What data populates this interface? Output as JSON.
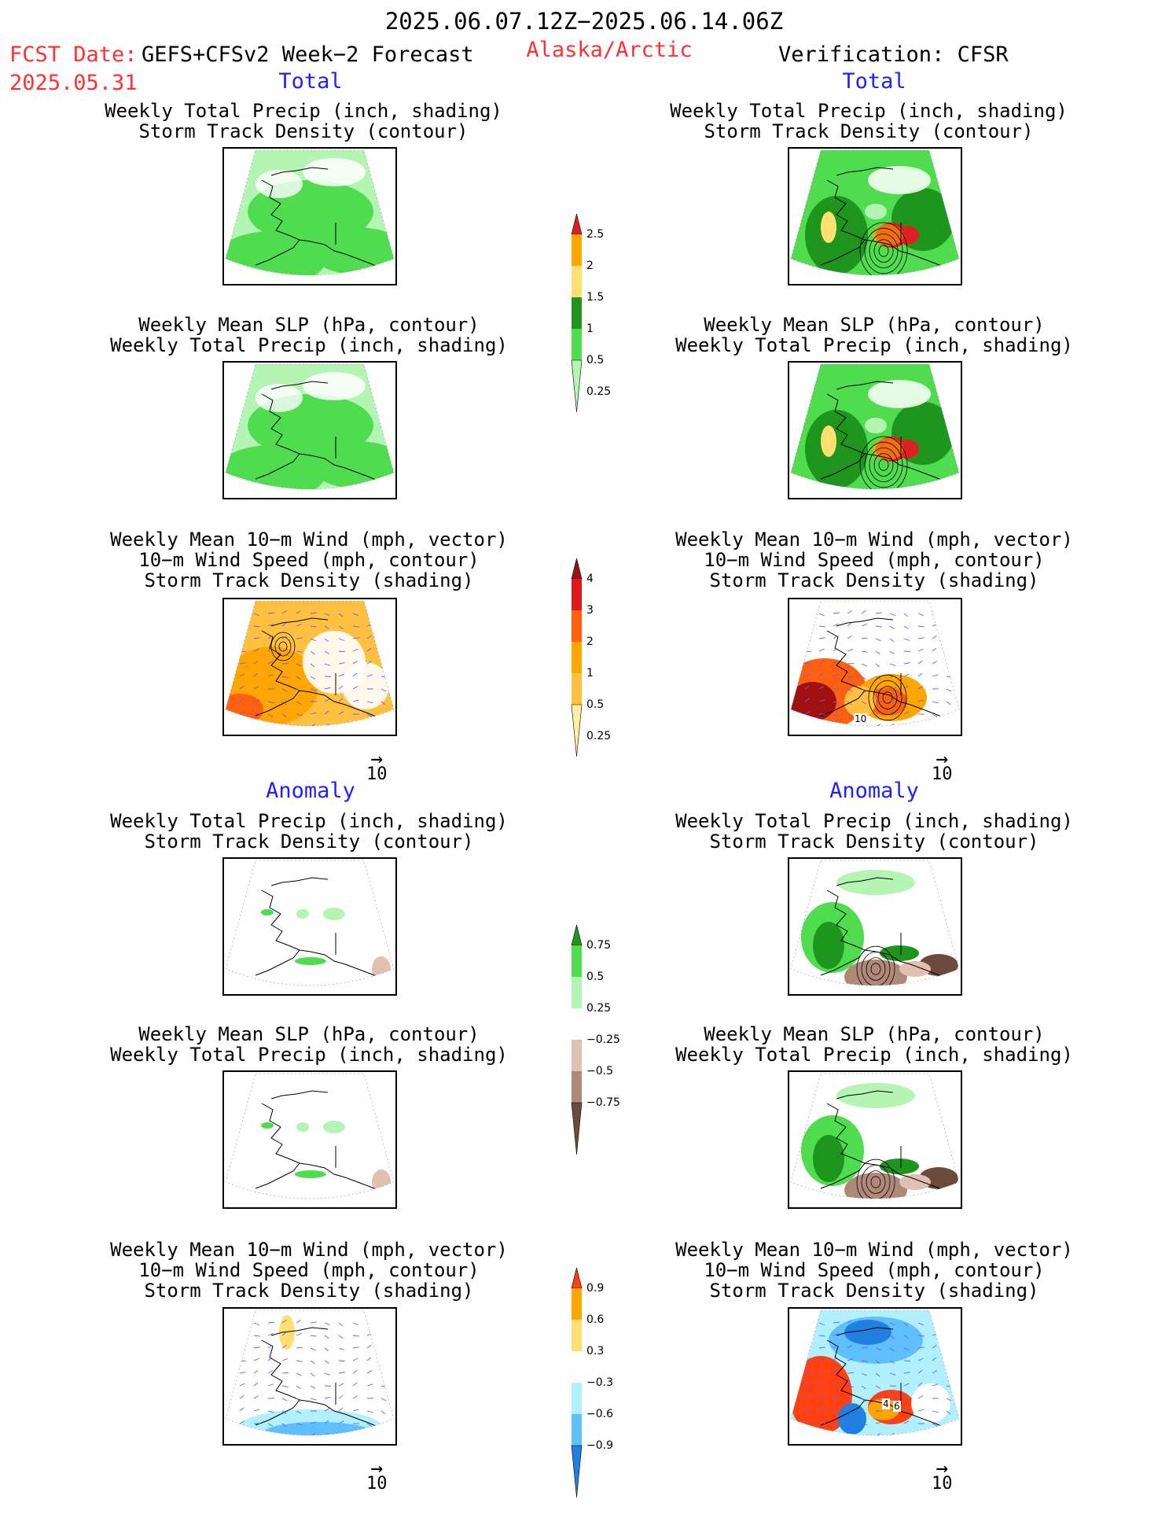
{
  "header": {
    "date_range": "2025.06.07.12Z−2025.06.14.06Z",
    "fcst_date_label": "FCST Date:",
    "fcst_model": "GEFS+CFSv2 Week−2 Forecast",
    "fcst_date": "2025.05.31",
    "region": "Alaska/Arctic",
    "verification": "Verification: CFSR"
  },
  "sections": {
    "total": "Total",
    "anomaly": "Anomaly"
  },
  "titles": {
    "precip_storm": "Weekly Total Precip (inch, shading)\nStorm Track Density (contour)",
    "slp_precip": "Weekly Mean SLP (hPa, contour)\nWeekly Total Precip (inch, shading)",
    "wind_storm": "Weekly Mean 10−m Wind (mph, vector)\n10−m Wind Speed (mph, contour)\nStorm Track Density (shading)"
  },
  "vector_reference": "10",
  "map_labels": {
    "right_wind_total": "10",
    "right_wind_anom_a": "4",
    "right_wind_anom_b": "6"
  },
  "colorbars": [
    {
      "id": "precip-total",
      "labels": [
        "2.5",
        "2",
        "1.5",
        "1",
        "0.5",
        "0.25"
      ],
      "colors": [
        "#e02020",
        "#ffa500",
        "#ffe070",
        "#1e961e",
        "#4fdc4f",
        "#b4f5b4"
      ]
    },
    {
      "id": "storm-total",
      "labels": [
        "4",
        "3",
        "2",
        "1",
        "0.5",
        "0.25"
      ],
      "colors": [
        "#a01010",
        "#e01818",
        "#ff6010",
        "#ffa500",
        "#ffc040",
        "#fff0a0"
      ]
    },
    {
      "id": "precip-anom",
      "labels": [
        "0.75",
        "0.5",
        "0.25",
        "−0.25",
        "−0.5",
        "−0.75"
      ],
      "colors": [
        "#1e961e",
        "#4fdc4f",
        "#b4f5b4",
        "#ffffff",
        "#e0c0b0",
        "#b08878",
        "#6e4a3c"
      ]
    },
    {
      "id": "storm-anom",
      "labels": [
        "0.9",
        "0.6",
        "0.3",
        "−0.3",
        "−0.6",
        "−0.9"
      ],
      "colors": [
        "#ff4010",
        "#ffa500",
        "#ffe070",
        "#ffffff",
        "#b0f0ff",
        "#60c0ff",
        "#2080e0"
      ]
    }
  ],
  "colors": {
    "total_label": "#2020ff",
    "fcst_label": "#ff3030",
    "coast": "#000000",
    "wind_vector": "#6060ff"
  }
}
